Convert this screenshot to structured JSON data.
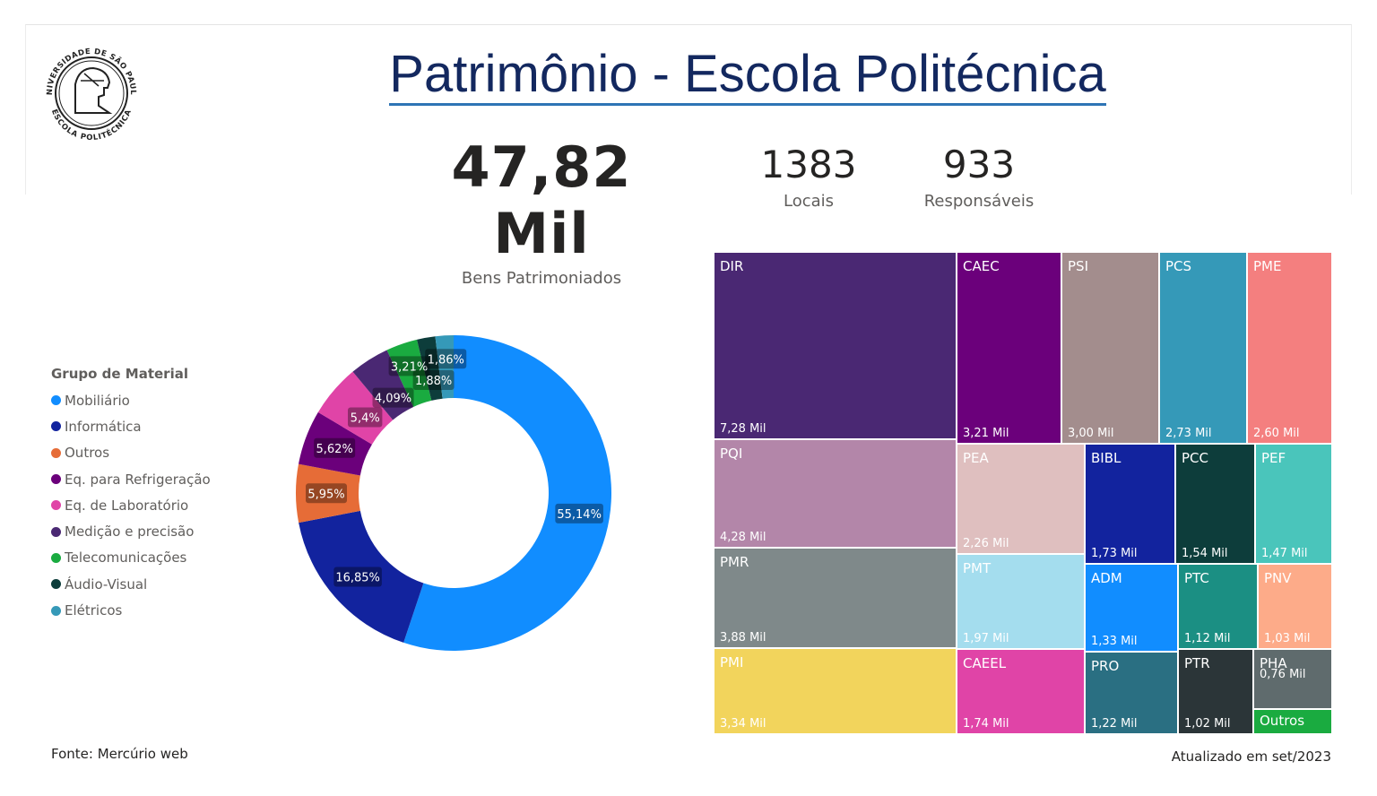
{
  "header": {
    "title": "Patrimônio - Escola Politécnica",
    "logo_text_top": "UNIVERSIDADE DE SÃO PAULO",
    "logo_text_bottom": "ESCOLA POLITÉCNICA"
  },
  "kpis": {
    "bens": {
      "value": "47,82 Mil",
      "label": "Bens Patrimoniados"
    },
    "locais": {
      "value": "1383",
      "label": "Locais"
    },
    "responsaveis": {
      "value": "933",
      "label": "Responsáveis"
    }
  },
  "legend": {
    "title": "Grupo de Material",
    "items": [
      {
        "label": "Mobiliário",
        "color": "#118dff"
      },
      {
        "label": "Informática",
        "color": "#12239e"
      },
      {
        "label": "Outros",
        "color": "#e66c37"
      },
      {
        "label": "Eq. para Refrigeração",
        "color": "#6b007b"
      },
      {
        "label": "Eq. de Laboratório",
        "color": "#e044a7"
      },
      {
        "label": "Medição e precisão",
        "color": "#4a2873"
      },
      {
        "label": "Telecomunicações",
        "color": "#1aab40"
      },
      {
        "label": "Áudio-Visual",
        "color": "#0d3d3b"
      },
      {
        "label": "Elétricos",
        "color": "#3599b8"
      }
    ]
  },
  "chart_data": [
    {
      "type": "pie",
      "variant": "donut",
      "legend_title": "Grupo de Material",
      "legend_position": "left",
      "categories": [
        "Mobiliário",
        "Informática",
        "Outros",
        "Eq. para Refrigeração",
        "Eq. de Laboratório",
        "Medição e precisão",
        "Telecomunicações",
        "Áudio-Visual",
        "Elétricos"
      ],
      "values": [
        55.14,
        16.85,
        5.95,
        5.62,
        5.4,
        4.09,
        3.21,
        1.88,
        1.86
      ],
      "labels": [
        "55,14%",
        "16,85%",
        "5,95%",
        "5,62%",
        "5,4%",
        "4,09%",
        "3,21%",
        "1,88%",
        "1,86%"
      ],
      "colors": [
        "#118dff",
        "#12239e",
        "#e66c37",
        "#6b007b",
        "#e044a7",
        "#4a2873",
        "#1aab40",
        "#0d3d3b",
        "#3599b8"
      ]
    },
    {
      "type": "treemap",
      "items": [
        {
          "name": "DIR",
          "value": 7.28,
          "label": "7,28 Mil",
          "color": "#4a2873"
        },
        {
          "name": "CAEC",
          "value": 3.21,
          "label": "3,21 Mil",
          "color": "#6b007b"
        },
        {
          "name": "PSI",
          "value": 3.0,
          "label": "3,00 Mil",
          "color": "#a38d8d"
        },
        {
          "name": "PCS",
          "value": 2.73,
          "label": "2,73 Mil",
          "color": "#3599b8"
        },
        {
          "name": "PME",
          "value": 2.6,
          "label": "2,60 Mil",
          "color": "#f47f7f"
        },
        {
          "name": "PQI",
          "value": 4.28,
          "label": "4,28 Mil",
          "color": "#b386a9"
        },
        {
          "name": "PEA",
          "value": 2.26,
          "label": "2,26 Mil",
          "color": "#dfbfbf"
        },
        {
          "name": "BIBL",
          "value": 1.73,
          "label": "1,73 Mil",
          "color": "#12239e"
        },
        {
          "name": "PCC",
          "value": 1.54,
          "label": "1,54 Mil",
          "color": "#0d3d3b"
        },
        {
          "name": "PEF",
          "value": 1.47,
          "label": "1,47 Mil",
          "color": "#4ac5bb"
        },
        {
          "name": "PMR",
          "value": 3.88,
          "label": "3,88 Mil",
          "color": "#7f898a"
        },
        {
          "name": "PMT",
          "value": 1.97,
          "label": "1,97 Mil",
          "color": "#a4ddee"
        },
        {
          "name": "ADM",
          "value": 1.33,
          "label": "1,33 Mil",
          "color": "#118dff"
        },
        {
          "name": "PTC",
          "value": 1.12,
          "label": "1,12 Mil",
          "color": "#1b8f83"
        },
        {
          "name": "PNV",
          "value": 1.03,
          "label": "1,03 Mil",
          "color": "#fdab89"
        },
        {
          "name": "PMI",
          "value": 3.34,
          "label": "3,34 Mil",
          "color": "#f2d45c"
        },
        {
          "name": "CAEEL",
          "value": 1.74,
          "label": "1,74 Mil",
          "color": "#e044a7"
        },
        {
          "name": "PRO",
          "value": 1.22,
          "label": "1,22 Mil",
          "color": "#2a6f82"
        },
        {
          "name": "PTR",
          "value": 1.02,
          "label": "1,02 Mil",
          "color": "#2b3538"
        },
        {
          "name": "PHA",
          "value": 0.76,
          "label": "0,76 Mil",
          "color": "#5f6b6d"
        },
        {
          "name": "Outros",
          "value": null,
          "label": "",
          "color": "#1aab40"
        }
      ]
    }
  ],
  "footer": {
    "source": "Fonte: Mercúrio web",
    "updated": "Atualizado em set/2023"
  }
}
